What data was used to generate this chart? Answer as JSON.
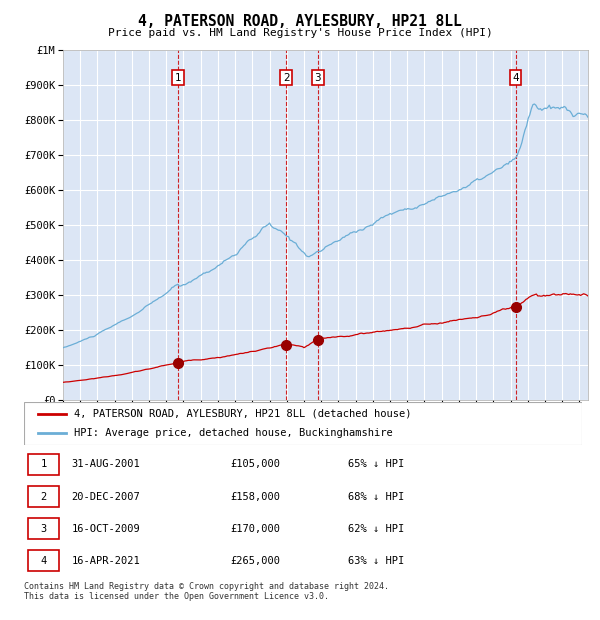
{
  "title": "4, PATERSON ROAD, AYLESBURY, HP21 8LL",
  "subtitle": "Price paid vs. HM Land Registry's House Price Index (HPI)",
  "background_color": "#dce6f5",
  "plot_bg_color": "#dce6f5",
  "grid_color": "#ffffff",
  "sales": [
    {
      "label": "1",
      "date_num": 2001.667,
      "price": 105000,
      "date_str": "31-AUG-2001",
      "pct": "65%"
    },
    {
      "label": "2",
      "date_num": 2007.972,
      "price": 158000,
      "date_str": "20-DEC-2007",
      "pct": "68%"
    },
    {
      "label": "3",
      "date_num": 2009.792,
      "price": 170000,
      "date_str": "16-OCT-2009",
      "pct": "62%"
    },
    {
      "label": "4",
      "date_num": 2021.292,
      "price": 265000,
      "date_str": "16-APR-2021",
      "pct": "63%"
    }
  ],
  "hpi_line_color": "#6baed6",
  "price_line_color": "#cc0000",
  "sale_marker_color": "#990000",
  "vline_color": "#cc0000",
  "ylim": [
    0,
    1000000
  ],
  "xlim_start": 1995,
  "xlim_end": 2025.5,
  "legend_label_red": "4, PATERSON ROAD, AYLESBURY, HP21 8LL (detached house)",
  "legend_label_blue": "HPI: Average price, detached house, Buckinghamshire",
  "footnote": "Contains HM Land Registry data © Crown copyright and database right 2024.\nThis data is licensed under the Open Government Licence v3.0."
}
